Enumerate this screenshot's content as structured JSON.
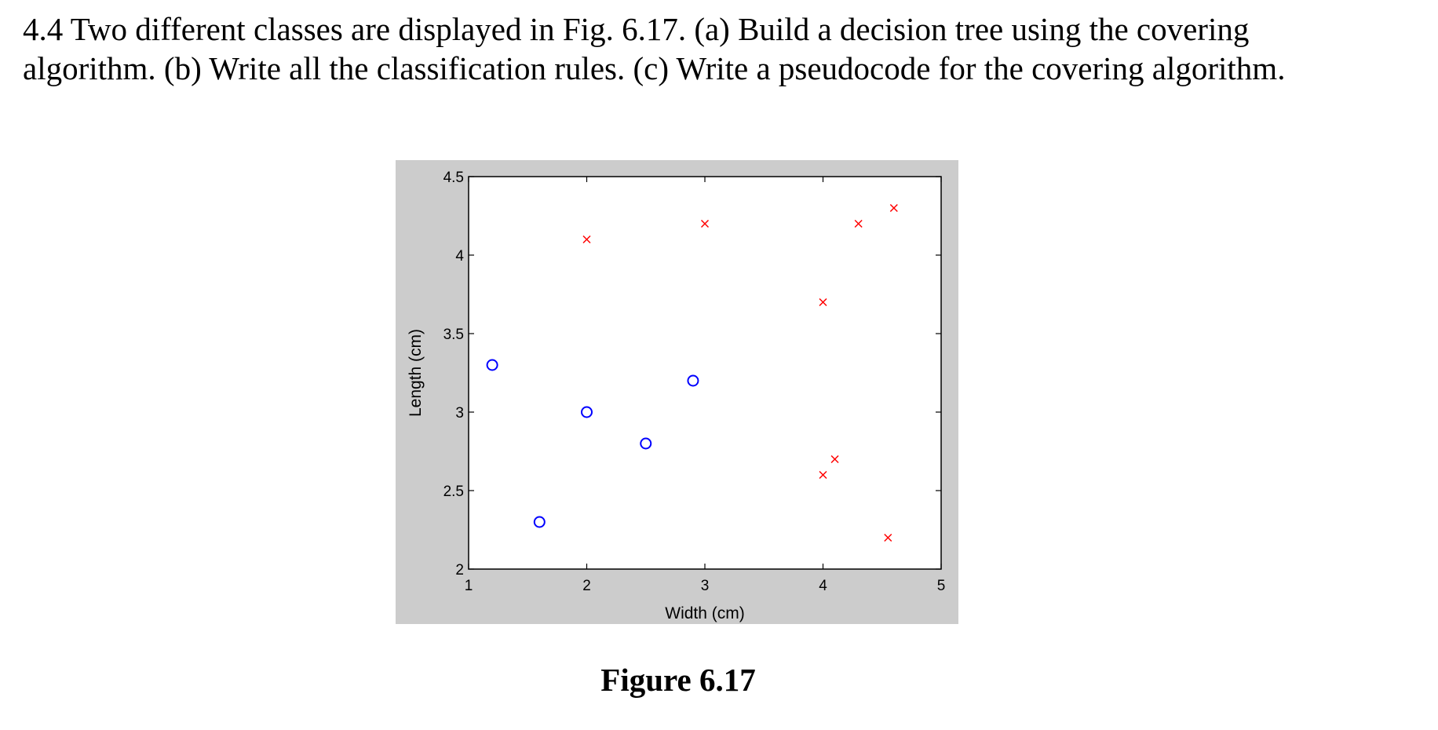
{
  "question": {
    "text": "4.4 Two different classes are displayed in Fig. 6.17. (a) Build a decision tree using the covering algorithm. (b) Write all the classification rules. (c) Write a pseudocode for the covering algorithm."
  },
  "figure": {
    "caption": "Figure 6.17"
  },
  "colors": {
    "panel_background": "#cccccc",
    "plot_background": "#ffffff",
    "class_circle": "#0000ff",
    "class_cross": "#ff0000"
  },
  "chart_data": {
    "type": "scatter",
    "title": "",
    "xlabel": "Width (cm)",
    "ylabel": "Length (cm)",
    "xlim": [
      1,
      5
    ],
    "ylim": [
      2,
      4.5
    ],
    "xticks": [
      1,
      2,
      3,
      4,
      5
    ],
    "yticks": [
      2,
      2.5,
      3,
      3.5,
      4,
      4.5
    ],
    "grid": false,
    "legend": "none",
    "series": [
      {
        "marker": "o",
        "color": "#0000ff",
        "x": [
          1.2,
          1.6,
          2.0,
          2.5,
          2.9
        ],
        "y": [
          3.3,
          2.3,
          3.0,
          2.8,
          3.2
        ]
      },
      {
        "marker": "x",
        "color": "#ff0000",
        "x": [
          2.0,
          3.0,
          4.0,
          4.3,
          4.6,
          4.0,
          4.1,
          4.55
        ],
        "y": [
          4.1,
          4.2,
          3.7,
          4.2,
          4.3,
          2.6,
          2.7,
          2.2
        ]
      }
    ]
  }
}
